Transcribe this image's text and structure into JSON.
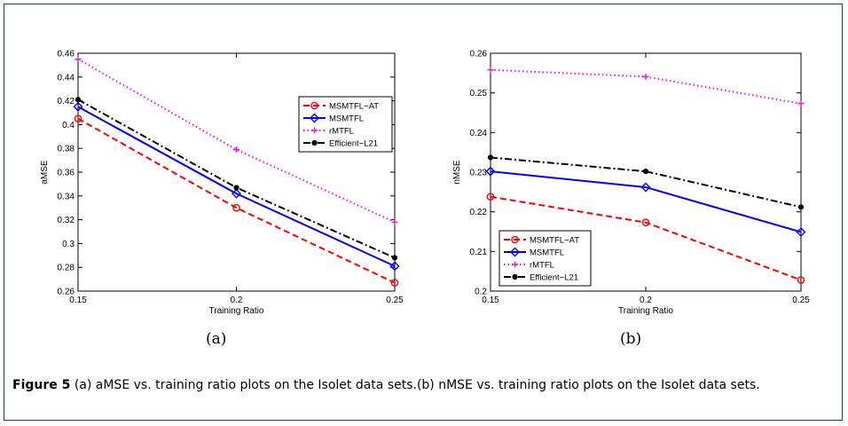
{
  "chart_data": [
    {
      "type": "line",
      "panel_label": "(a)",
      "xlabel": "Training Ratio",
      "ylabel": "aMSE",
      "xlim": [
        0.15,
        0.25
      ],
      "ylim": [
        0.26,
        0.46
      ],
      "xticks": [
        "0.15",
        "0.2",
        "0.25"
      ],
      "yticks": [
        "0.26",
        "0.28",
        "0.3",
        "0.32",
        "0.34",
        "0.36",
        "0.38",
        "0.4",
        "0.42",
        "0.44",
        "0.46"
      ],
      "legend_position": "top-right",
      "x": [
        0.15,
        0.2,
        0.25
      ],
      "series": [
        {
          "name": "MSMTFL−AT",
          "values": [
            0.405,
            0.33,
            0.267
          ],
          "color": "#ff0000",
          "dash": "dashed",
          "marker": "circle"
        },
        {
          "name": "MSMTFL",
          "values": [
            0.415,
            0.342,
            0.281
          ],
          "color": "#0000ff",
          "dash": "solid",
          "marker": "diamond"
        },
        {
          "name": "rMTFL",
          "values": [
            0.455,
            0.379,
            0.318
          ],
          "color": "#ff00ff",
          "dash": "dotted",
          "marker": "plus"
        },
        {
          "name": "Efficient−L21",
          "values": [
            0.421,
            0.347,
            0.288
          ],
          "color": "#000000",
          "dash": "dashdot",
          "marker": "dot"
        }
      ]
    },
    {
      "type": "line",
      "panel_label": "(b)",
      "xlabel": "Training Ratio",
      "ylabel": "nMSE",
      "xlim": [
        0.15,
        0.25
      ],
      "ylim": [
        0.2,
        0.26
      ],
      "xticks": [
        "0.15",
        "0.2",
        "0.25"
      ],
      "yticks": [
        "0.2",
        "0.21",
        "0.22",
        "0.23",
        "0.24",
        "0.25",
        "0.26"
      ],
      "legend_position": "bottom-left",
      "x": [
        0.15,
        0.2,
        0.25
      ],
      "series": [
        {
          "name": "MSMTFL−AT",
          "values": [
            0.2238,
            0.2173,
            0.2028
          ],
          "color": "#ff0000",
          "dash": "dashed",
          "marker": "circle"
        },
        {
          "name": "MSMTFL",
          "values": [
            0.2302,
            0.2262,
            0.2149
          ],
          "color": "#0000ff",
          "dash": "solid",
          "marker": "diamond"
        },
        {
          "name": "rMTFL",
          "values": [
            0.2558,
            0.2541,
            0.2473
          ],
          "color": "#ff00ff",
          "dash": "dotted",
          "marker": "plus"
        },
        {
          "name": "Efficient−L21",
          "values": [
            0.2337,
            0.2302,
            0.2212
          ],
          "color": "#000000",
          "dash": "dashdot",
          "marker": "dot"
        }
      ]
    }
  ],
  "caption": {
    "figure_label": "Figure 5",
    "text": " (a) aMSE vs. training ratio plots on the Isolet data sets.(b) nMSE vs. training ratio plots on the Isolet data sets."
  }
}
